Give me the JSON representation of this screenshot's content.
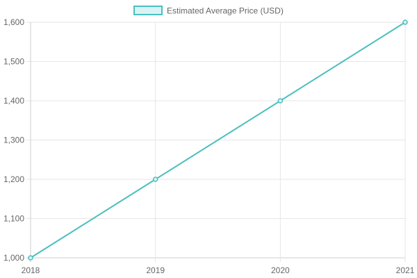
{
  "chart_data": {
    "type": "line",
    "x": [
      "2018",
      "2019",
      "2020",
      "2021"
    ],
    "series": [
      {
        "name": "Estimated Average Price (USD)",
        "values": [
          1000,
          1200,
          1400,
          1600
        ],
        "color": "#4bbfbf",
        "fill": "#d9f3f3"
      }
    ],
    "ylim": [
      1000,
      1600
    ],
    "yticks": [
      1000,
      1100,
      1200,
      1300,
      1400,
      1500,
      1600
    ],
    "ytick_labels": [
      "1,000",
      "1,100",
      "1,200",
      "1,300",
      "1,400",
      "1,500",
      "1,600"
    ],
    "grid": true,
    "legend_position": "top-center"
  }
}
